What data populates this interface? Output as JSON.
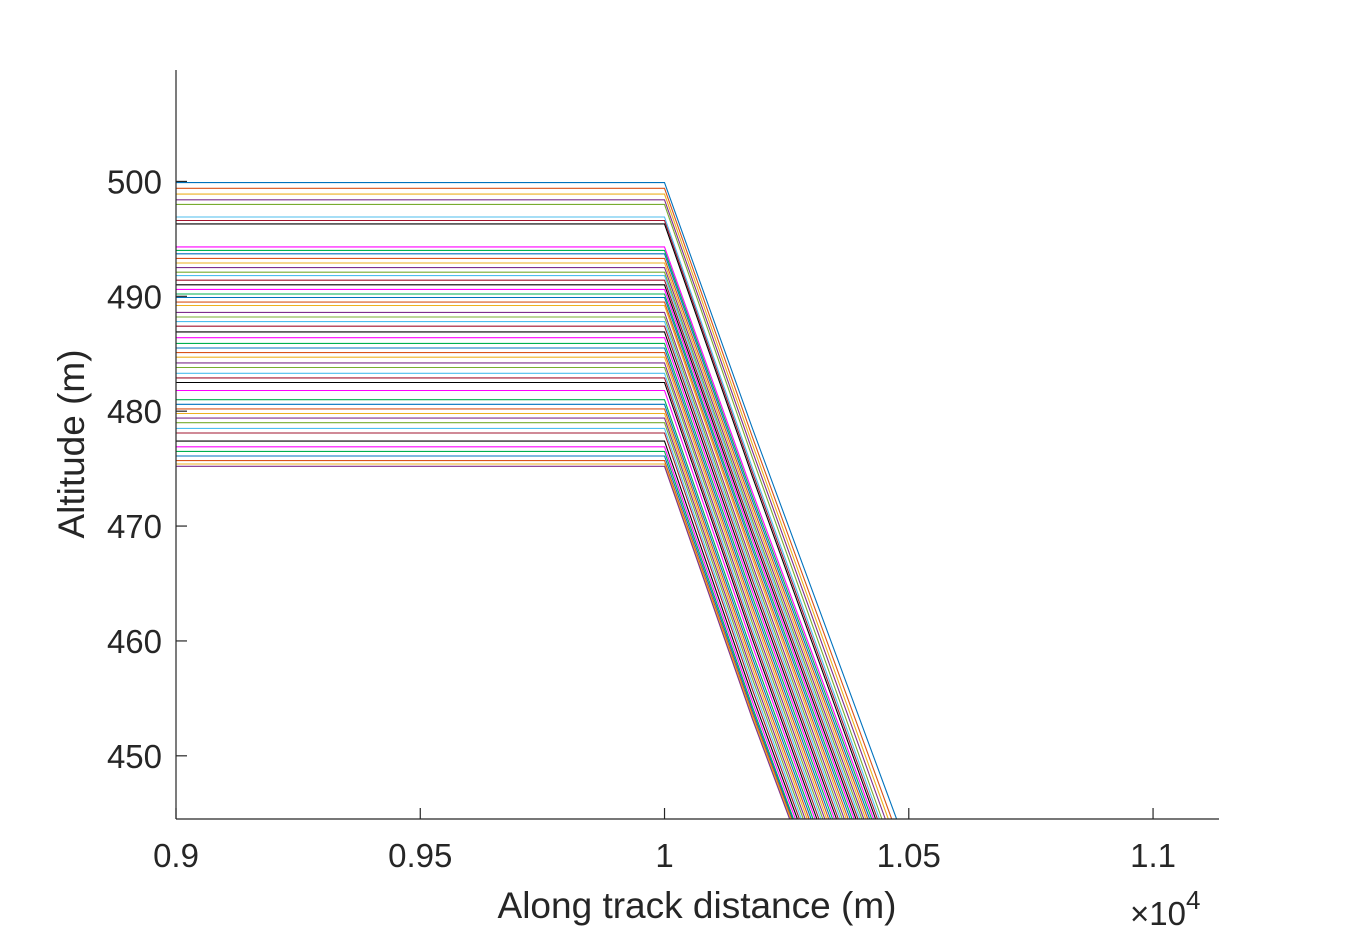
{
  "chart_data": {
    "type": "line",
    "title": "",
    "xlabel": "Along track distance (m)",
    "ylabel": "Altitude (m)",
    "x_exponent_label": {
      "base": "×10",
      "power": "4"
    },
    "xlim": [
      9000,
      11135
    ],
    "ylim": [
      444.5,
      509.7
    ],
    "x_ticks": [
      9000,
      9500,
      10000,
      10500,
      11000
    ],
    "x_tick_labels": [
      "0.9",
      "0.95",
      "1",
      "1.05",
      "1.1"
    ],
    "y_ticks": [
      450,
      460,
      470,
      480,
      490,
      500
    ],
    "y_tick_labels": [
      "450",
      "460",
      "470",
      "480",
      "490",
      "500"
    ],
    "grid": false,
    "legend": "none",
    "series_colors": [
      "#0072BD",
      "#D95319",
      "#EDB120",
      "#7E2F8E",
      "#77AC30",
      "#4DBEEE",
      "#A2142F",
      "#000000",
      "#FF00FF",
      "#00B050"
    ],
    "series_description": "Each line holds a constant altitude from x = 9000 m to x = 10000 m, then descends steeply with a slight kink near x ≈ 10180 m, leaving the plot bottom between x ≈ 10260 m and x ≈ 10470 m.",
    "series_break_x": 10000,
    "series_kink_x": 10180,
    "series_start_altitudes": [
      499.9,
      499.4,
      498.9,
      498.4,
      498.0,
      496.9,
      496.6,
      496.3,
      494.3,
      494.0,
      493.7,
      493.3,
      492.9,
      492.5,
      492.1,
      491.8,
      491.4,
      491.0,
      490.6,
      490.2,
      489.9,
      489.5,
      489.2,
      488.6,
      488.2,
      487.8,
      487.4,
      486.9,
      486.4,
      485.9,
      485.5,
      485.1,
      484.7,
      484.2,
      483.8,
      483.3,
      482.9,
      482.5,
      481.8,
      481.0,
      480.6,
      480.2,
      479.8,
      479.4,
      479.0,
      478.5,
      478.1,
      477.4,
      476.9,
      476.5,
      476.1,
      475.7,
      475.4,
      475.2
    ],
    "series_exit_x": [
      10475,
      10465,
      10458,
      10452,
      10445,
      10440,
      10436,
      10432,
      10428,
      10424,
      10420,
      10416,
      10412,
      10408,
      10404,
      10400,
      10396,
      10392,
      10388,
      10384,
      10380,
      10376,
      10372,
      10368,
      10364,
      10360,
      10356,
      10352,
      10348,
      10344,
      10340,
      10336,
      10332,
      10328,
      10324,
      10320,
      10316,
      10312,
      10308,
      10304,
      10300,
      10296,
      10292,
      10288,
      10284,
      10280,
      10276,
      10272,
      10268,
      10264,
      10262,
      10260,
      10258,
      10256
    ]
  }
}
